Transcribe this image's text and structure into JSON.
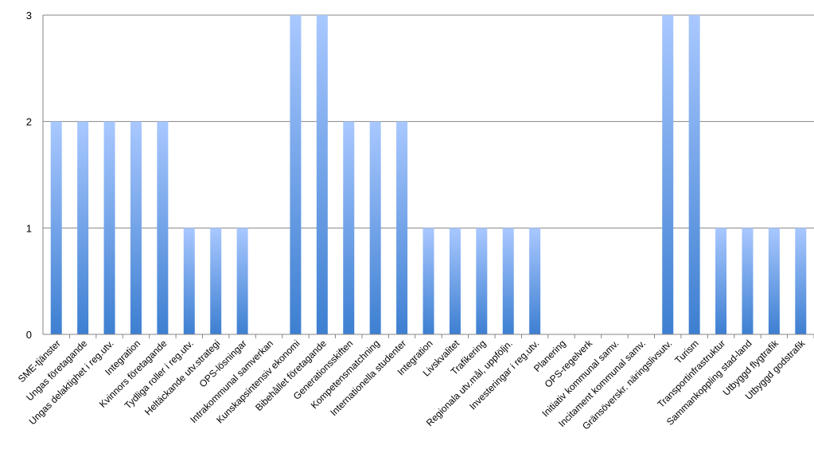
{
  "chart_data": {
    "type": "bar",
    "title": "",
    "xlabel": "",
    "ylabel": "",
    "ylim": [
      0,
      3
    ],
    "yticks": [
      "0",
      "1",
      "2",
      "3"
    ],
    "grid": true,
    "legend": "none",
    "colors": {
      "bar_top": "#a9c8ff",
      "bar_bottom": "#3d7fd1",
      "grid": "#868686",
      "axis": "#868686"
    },
    "categories": [
      "SME-tjänster",
      "Ungas företagande",
      "Ungas delaktighet i reg.utv.",
      "Integration",
      "Kvinnors företagande",
      "Tydliga roller i reg.utv.",
      "Heltäckande utv.strategi",
      "OPS-lösningar",
      "Intrakommunal samverkan",
      "Kunskapsintensiv ekonomi",
      "Bibehållet företagande",
      "Generationsskiften",
      "Kompetensmatchning",
      "Internationella studenter",
      "Integration",
      "Livskvalitet",
      "Trafikering",
      "Regionala utv.mål, uppföljn.",
      "Investeringar i reg.utv.",
      "Planering",
      "OPS-regelverk",
      "Initiativ kommunal samv.",
      "Incitament kommunal samv.",
      "Gränsöverskr. näringslivsutv.",
      "Turism",
      "Transportinfrastruktur",
      "Sammankoppling stad-land",
      "Utbyggd flygtrafik",
      "Utbyggd godstrafik"
    ],
    "values": [
      2,
      2,
      2,
      2,
      2,
      1,
      1,
      1,
      0,
      3,
      3,
      2,
      2,
      2,
      1,
      1,
      1,
      1,
      1,
      0,
      0,
      0,
      0,
      3,
      3,
      1,
      1,
      1,
      1
    ]
  }
}
